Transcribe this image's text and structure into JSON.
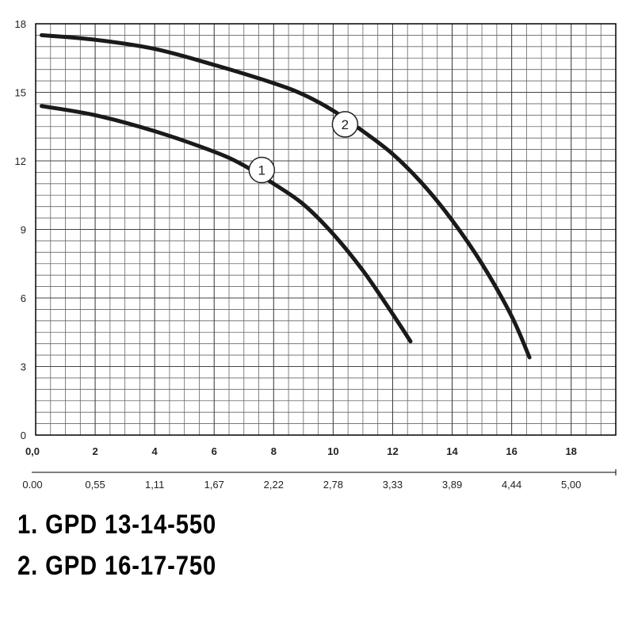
{
  "chart_data": {
    "type": "line",
    "title": "",
    "xlabel": "",
    "ylabel": "",
    "xlim": [
      0,
      19.5
    ],
    "ylim": [
      0,
      18
    ],
    "x_ticks": [
      "0,0",
      "2",
      "4",
      "6",
      "8",
      "10",
      "12",
      "14",
      "16",
      "18"
    ],
    "x_tick_values": [
      0,
      2,
      4,
      6,
      8,
      10,
      12,
      14,
      16,
      18
    ],
    "x2_ticks": [
      "0.00",
      "0,55",
      "1,11",
      "1,67",
      "2,22",
      "2,78",
      "3,33",
      "3,89",
      "4,44",
      "5,00"
    ],
    "y_ticks": [
      "0",
      "3",
      "6",
      "9",
      "12",
      "15",
      "18"
    ],
    "y_tick_values": [
      0,
      3,
      6,
      9,
      12,
      15,
      18
    ],
    "grid": true,
    "series": [
      {
        "name": "1",
        "label_point": {
          "x": 7.6,
          "y": 11.6
        },
        "x": [
          0.2,
          2,
          4,
          6,
          7,
          8,
          9,
          10,
          11,
          12,
          12.6
        ],
        "y": [
          14.4,
          14.0,
          13.3,
          12.4,
          11.8,
          11.0,
          10.1,
          8.8,
          7.2,
          5.3,
          4.1
        ]
      },
      {
        "name": "2",
        "label_point": {
          "x": 10.4,
          "y": 13.6
        },
        "x": [
          0.2,
          2,
          4,
          6,
          8,
          9,
          10,
          11,
          12,
          13,
          14,
          15,
          16,
          16.6
        ],
        "y": [
          17.5,
          17.3,
          16.9,
          16.2,
          15.4,
          14.9,
          14.2,
          13.3,
          12.3,
          11.0,
          9.4,
          7.5,
          5.2,
          3.4
        ]
      }
    ]
  },
  "legend": {
    "line1": "1. GPD 13-14-550",
    "line2": "2. GPD 16-17-750"
  }
}
